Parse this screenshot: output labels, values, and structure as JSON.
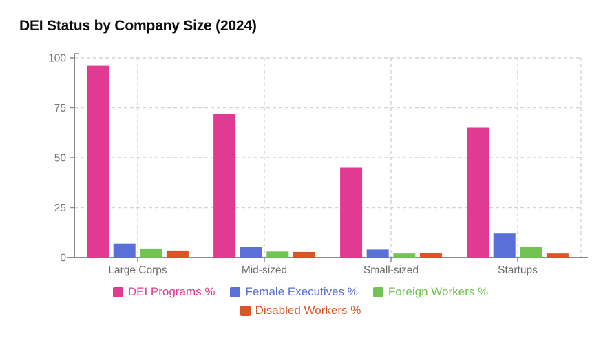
{
  "title": "DEI Status by Company Size (2024)",
  "chart_data": {
    "type": "bar",
    "title": "DEI Status by Company Size (2024)",
    "categories": [
      "Large Corps",
      "Mid-sized",
      "Small-sized",
      "Startups"
    ],
    "series": [
      {
        "name": "DEI Programs %",
        "color": "#E13A92",
        "values": [
          96,
          72,
          45,
          65
        ]
      },
      {
        "name": "Female Executives %",
        "color": "#5A6FD8",
        "values": [
          7,
          5.5,
          4,
          12
        ]
      },
      {
        "name": "Foreign Workers %",
        "color": "#72C353",
        "values": [
          4.5,
          3,
          2,
          5.5
        ]
      },
      {
        "name": "Disabled Workers %",
        "color": "#DC5426",
        "values": [
          3.5,
          2.8,
          2.2,
          2
        ]
      }
    ],
    "xlabel": "",
    "ylabel": "",
    "ylim": [
      0,
      100
    ],
    "yticks": [
      0,
      25,
      50,
      75,
      100
    ],
    "grid": true,
    "gridline_style": "dashed",
    "legend_position": "bottom"
  },
  "colors": {
    "background": "#ffffff",
    "grid": "#d4d4d4",
    "axis": "#8a8a8a",
    "tick_label": "#757575",
    "category_label": "#6b6b6b",
    "title_text": "#0e0e0e"
  }
}
